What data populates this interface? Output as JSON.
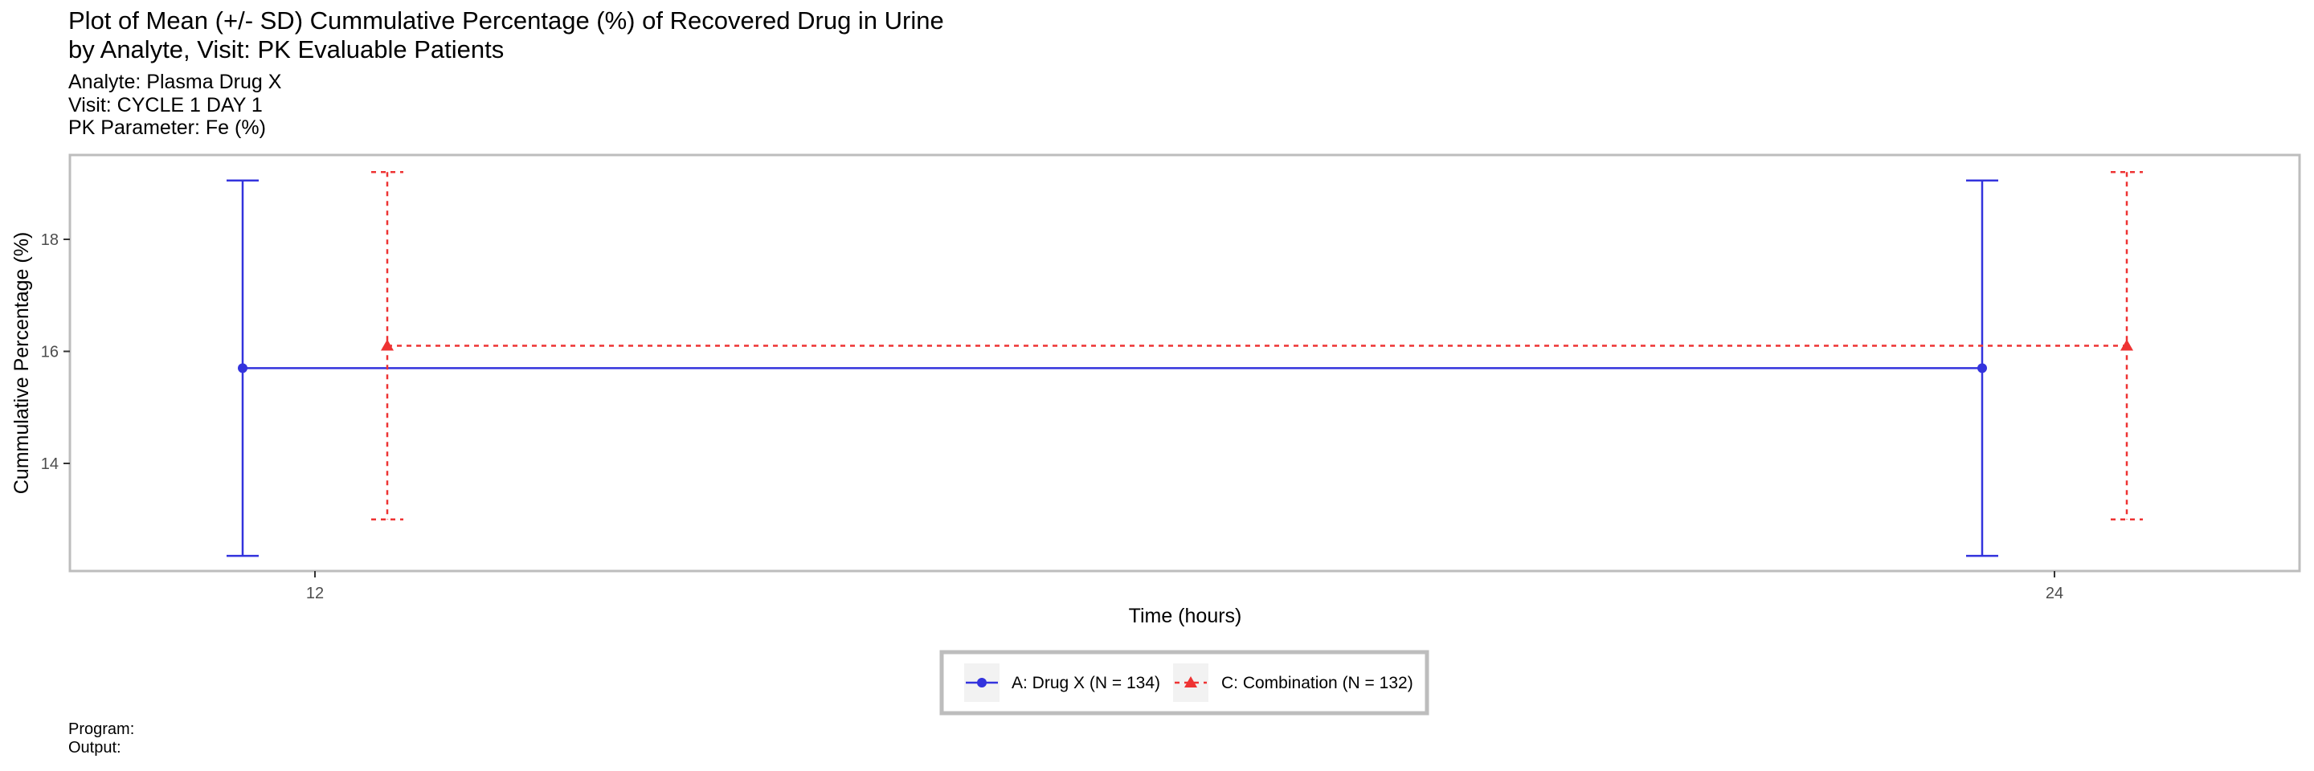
{
  "title_lines": [
    "Plot of Mean (+/- SD) Cummulative Percentage (%) of Recovered Drug in Urine",
    "by Analyte, Visit: PK Evaluable Patients"
  ],
  "subtitle_lines": [
    "Analyte: Plasma Drug X",
    "Visit: CYCLE 1 DAY 1",
    "PK Parameter: Fe (%)"
  ],
  "footer": {
    "program": "Program:",
    "output": "Output:"
  },
  "chart_data": {
    "type": "line",
    "xlabel": "Time (hours)",
    "ylabel": "Cummulative Percentage (%)",
    "x_ticks": [
      12,
      24
    ],
    "y_ticks": [
      14,
      16,
      18
    ],
    "ylim": [
      12.2,
      19.7
    ],
    "grid": false,
    "legend_position": "bottom",
    "series": [
      {
        "name": "A: Drug X (N = 134)",
        "color": "#3333dd",
        "marker": "circle",
        "line_style": "solid",
        "x": [
          12,
          24
        ],
        "mean": [
          15.7,
          15.7
        ],
        "sd_low": [
          12.35,
          12.35
        ],
        "sd_high": [
          19.05,
          19.05
        ]
      },
      {
        "name": "C: Combination (N = 132)",
        "color": "#ee3333",
        "marker": "triangle",
        "line_style": "dashed",
        "x": [
          12,
          24
        ],
        "mean": [
          16.1,
          16.1
        ],
        "sd_low": [
          13.0,
          13.0
        ],
        "sd_high": [
          19.2,
          19.2
        ]
      }
    ]
  }
}
